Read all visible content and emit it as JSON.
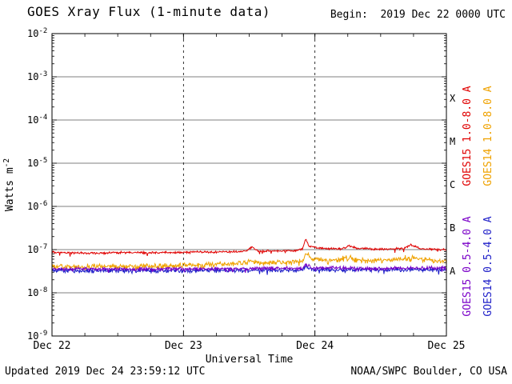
{
  "header": {
    "title": "GOES Xray Flux (1-minute data)",
    "begin": "Begin:  2019 Dec 22 0000 UTC"
  },
  "footer": {
    "updated": "Updated 2019 Dec 24 23:59:12 UTC",
    "credit": "NOAA/SWPC Boulder, CO USA"
  },
  "chart_data": {
    "type": "line",
    "title": "GOES Xray Flux (1-minute data)",
    "xlabel": "Universal Time",
    "ylabel": "Watts m",
    "ylabel_exponent": "-2",
    "y_scale": "log",
    "ylim": [
      1e-09,
      0.01
    ],
    "y_tick_exponents": [
      -2,
      -3,
      -4,
      -5,
      -6,
      -7,
      -8,
      -9
    ],
    "x_range_days": [
      0,
      3
    ],
    "x_tick_labels": [
      "Dec 22",
      "Dec 23",
      "Dec 24",
      "Dec 25"
    ],
    "grid": {
      "horizontal": "solid line at each decade",
      "vertical": "dashed line at each day boundary"
    },
    "flare_classes": [
      {
        "label": "X",
        "flux_exponent": -3.5
      },
      {
        "label": "M",
        "flux_exponent": -4.5
      },
      {
        "label": "C",
        "flux_exponent": -5.5
      },
      {
        "label": "B",
        "flux_exponent": -6.5
      },
      {
        "label": "A",
        "flux_exponent": -7.5
      }
    ],
    "series": [
      {
        "name": "GOES15 1.0-8.0 A",
        "color": "#e00000",
        "noise": 0.035,
        "points": [
          [
            0,
            8.8e-08
          ],
          [
            0.15,
            8.4e-08
          ],
          [
            0.35,
            8.2e-08
          ],
          [
            0.55,
            8.6e-08
          ],
          [
            0.75,
            8.4e-08
          ],
          [
            0.95,
            8.6e-08
          ],
          [
            1.15,
            8.8e-08
          ],
          [
            1.35,
            8.8e-08
          ],
          [
            1.48,
            9.2e-08
          ],
          [
            1.52,
            1.15e-07
          ],
          [
            1.56,
            9.4e-08
          ],
          [
            1.7,
            9.2e-08
          ],
          [
            1.85,
            9.6e-08
          ],
          [
            1.905,
            1.02e-07
          ],
          [
            1.93,
            1.72e-07
          ],
          [
            1.955,
            1.18e-07
          ],
          [
            2.05,
            1.06e-07
          ],
          [
            2.2,
            1.03e-07
          ],
          [
            2.26,
            1.22e-07
          ],
          [
            2.33,
            1.06e-07
          ],
          [
            2.5,
            1.02e-07
          ],
          [
            2.67,
            1.06e-07
          ],
          [
            2.73,
            1.28e-07
          ],
          [
            2.8,
            1.06e-07
          ],
          [
            2.95,
            1e-07
          ],
          [
            3,
            9.8e-08
          ]
        ]
      },
      {
        "name": "GOES14 1.0-8.0 A",
        "color": "#efa200",
        "noise": 0.09,
        "points": [
          [
            0,
            4.1e-08
          ],
          [
            0.4,
            4e-08
          ],
          [
            0.8,
            4.2e-08
          ],
          [
            1.1,
            4.4e-08
          ],
          [
            1.4,
            4.7e-08
          ],
          [
            1.52,
            5.4e-08
          ],
          [
            1.6,
            4.9e-08
          ],
          [
            1.8,
            5.1e-08
          ],
          [
            1.91,
            5.4e-08
          ],
          [
            1.93,
            8.3e-08
          ],
          [
            1.97,
            6.2e-08
          ],
          [
            2.1,
            5.5e-08
          ],
          [
            2.26,
            6.4e-08
          ],
          [
            2.34,
            5.6e-08
          ],
          [
            2.55,
            5.7e-08
          ],
          [
            2.72,
            6.5e-08
          ],
          [
            2.85,
            5.7e-08
          ],
          [
            3,
            5.5e-08
          ]
        ]
      },
      {
        "name": "GOES15 0.5-4.0 A",
        "color": "#7a00c8",
        "noise": 0.055,
        "points": [
          [
            0,
            3.6e-08
          ],
          [
            0.6,
            3.55e-08
          ],
          [
            1.2,
            3.6e-08
          ],
          [
            1.91,
            3.7e-08
          ],
          [
            1.93,
            4.6e-08
          ],
          [
            1.97,
            3.8e-08
          ],
          [
            2.4,
            3.7e-08
          ],
          [
            3,
            3.75e-08
          ]
        ]
      },
      {
        "name": "GOES14 0.5-4.0 A",
        "color": "#1e1ec8",
        "noise": 0.07,
        "points": [
          [
            0,
            3.3e-08
          ],
          [
            0.7,
            3.25e-08
          ],
          [
            1.4,
            3.3e-08
          ],
          [
            1.91,
            3.35e-08
          ],
          [
            1.93,
            3.9e-08
          ],
          [
            1.97,
            3.4e-08
          ],
          [
            2.5,
            3.45e-08
          ],
          [
            3,
            3.4e-08
          ]
        ]
      }
    ]
  }
}
